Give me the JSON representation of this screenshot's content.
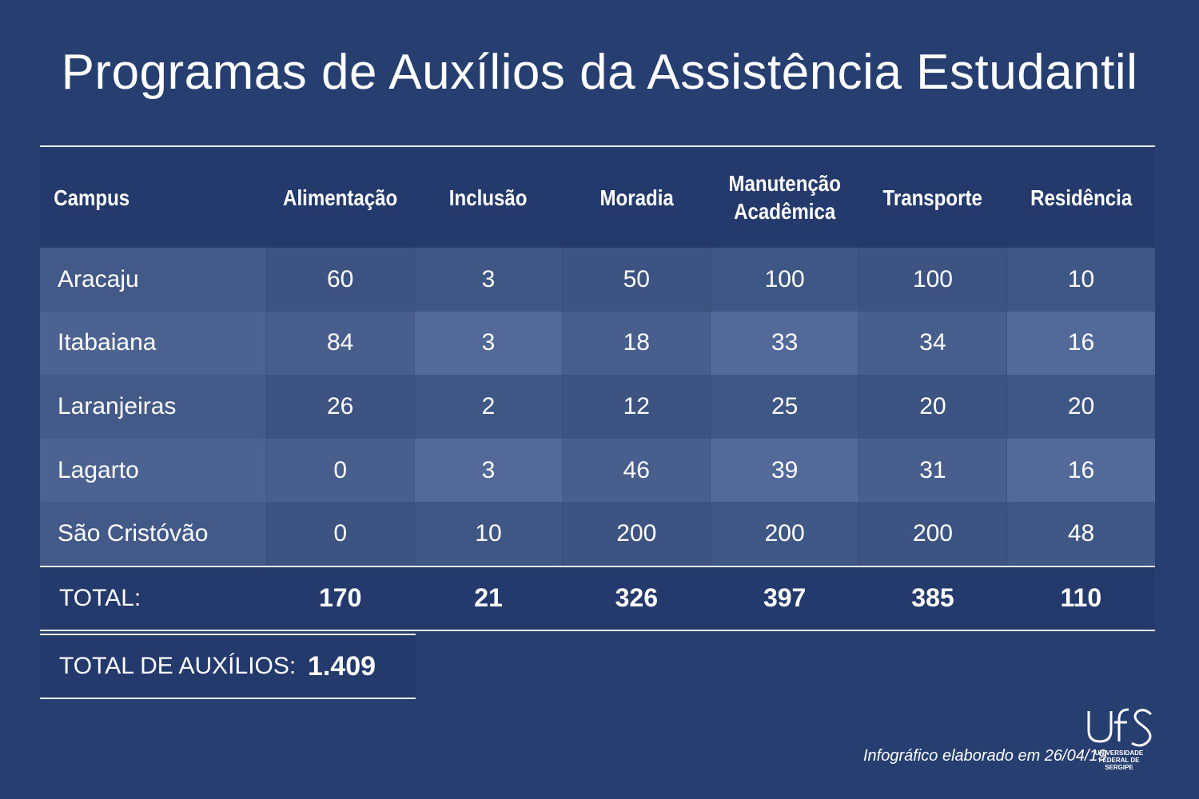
{
  "title": "Programas de Auxílios da Assistência Estudantil",
  "colors": {
    "background": "#263f70",
    "header": "#243a6c",
    "row": "#435a88",
    "text": "#ffffff"
  },
  "chart_data": {
    "type": "table",
    "columns": [
      "Campus",
      "Alimentação",
      "Inclusão",
      "Moradia",
      "Manutenção Acadêmica",
      "Transporte",
      "Residência"
    ],
    "rows": [
      {
        "campus": "Aracaju",
        "values": [
          "60",
          "3",
          "50",
          "100",
          "100",
          "10"
        ]
      },
      {
        "campus": "Itabaiana",
        "values": [
          "84",
          "3",
          "18",
          "33",
          "34",
          "16"
        ]
      },
      {
        "campus": "Laranjeiras",
        "values": [
          "26",
          "2",
          "12",
          "25",
          "20",
          "20"
        ]
      },
      {
        "campus": "Lagarto",
        "values": [
          "0",
          "3",
          "46",
          "39",
          "31",
          "16"
        ]
      },
      {
        "campus": "São Cristóvão",
        "values": [
          "0",
          "10",
          "200",
          "200",
          "200",
          "48"
        ]
      }
    ],
    "total_label": "TOTAL:",
    "totals": [
      "170",
      "21",
      "326",
      "397",
      "385",
      "110"
    ],
    "grand_total_label": "TOTAL DE AUXÍLIOS:",
    "grand_total": "1.409"
  },
  "footer": "Infográfico elaborado em 26/04/19",
  "logo": {
    "name": "ufs-logo-icon",
    "text_lines": [
      "UNIVERSIDADE",
      "FEDERAL DE",
      "SERGIPE"
    ]
  }
}
